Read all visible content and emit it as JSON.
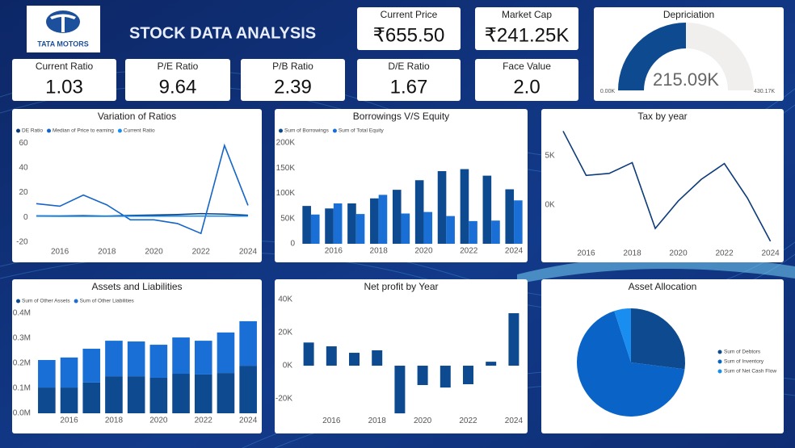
{
  "header": {
    "logo": "TATA MOTORS",
    "title": "STOCK DATA ANALYSIS"
  },
  "cards": [
    {
      "label": "Current Price",
      "value": "₹655.50"
    },
    {
      "label": "Market Cap",
      "value": "₹241.25K"
    },
    {
      "label": "Current Ratio",
      "value": "1.03"
    },
    {
      "label": "P/E Ratio",
      "value": "9.64"
    },
    {
      "label": "P/B Ratio",
      "value": "2.39"
    },
    {
      "label": "D/E Ratio",
      "value": "1.67"
    },
    {
      "label": "Face Value",
      "value": "2.0"
    }
  ],
  "chart_data": [
    {
      "type": "gauge",
      "title": "Depriciation",
      "values": [
        215090
      ],
      "value_labels": [
        "215.09K"
      ],
      "color": "#0d4a8f",
      "track_color": "#f1eeee",
      "ylim": [
        0,
        430170
      ],
      "yticks": [
        {
          "value": 0,
          "label": "0.00K"
        },
        {
          "value": 430170,
          "label": "430.17K"
        }
      ]
    },
    {
      "type": "line",
      "title": "Variation of Ratios",
      "x": [
        2015,
        2016,
        2017,
        2018,
        2019,
        2020,
        2021,
        2022,
        2023,
        2024
      ],
      "xlim": [
        2014.85,
        2024.4
      ],
      "xticks": [
        2016,
        2018,
        2020,
        2022,
        2024
      ],
      "ylim": [
        -22,
        64
      ],
      "yticks": [
        -20,
        0,
        20,
        40,
        60
      ],
      "series": [
        {
          "name": "DE Ratio",
          "color": "#0d3b7a",
          "values": [
            1.2,
            1.1,
            1.3,
            1.0,
            1.5,
            1.8,
            2.2,
            3.0,
            2.6,
            1.67
          ]
        },
        {
          "name": "Median of Price to earning",
          "color": "#1565c8",
          "values": [
            11,
            9,
            18,
            10,
            -2,
            -2,
            -5,
            -13,
            58,
            9.64
          ]
        },
        {
          "name": "Current Ratio",
          "color": "#1a8ef0",
          "values": [
            0.9,
            0.8,
            0.8,
            0.8,
            0.9,
            0.9,
            1.0,
            1.0,
            1.0,
            1.03
          ]
        }
      ]
    },
    {
      "type": "bar",
      "title": "Borrowings V/S Equity",
      "x": [
        2015,
        2016,
        2017,
        2018,
        2019,
        2020,
        2021,
        2022,
        2023,
        2024
      ],
      "xlim": [
        2014.5,
        2024.5
      ],
      "xticks": [
        2016,
        2018,
        2020,
        2022,
        2024
      ],
      "ylim": [
        0,
        210000
      ],
      "yticks": [
        0,
        {
          "value": 50000,
          "label": "50K"
        },
        {
          "value": 100000,
          "label": "100K"
        },
        {
          "value": 150000,
          "label": "150K"
        },
        {
          "value": 200000,
          "label": "200K"
        }
      ],
      "series": [
        {
          "name": "Sum of Borrowings",
          "color": "#0d4a8f",
          "values": [
            75000,
            70000,
            80000,
            90000,
            107000,
            126000,
            144000,
            148000,
            135000,
            108000
          ]
        },
        {
          "name": "Sum of Total Equity",
          "color": "#1a6fd6",
          "values": [
            58000,
            80000,
            59000,
            97000,
            60000,
            63000,
            55000,
            45000,
            46000,
            86000
          ]
        }
      ]
    },
    {
      "type": "line",
      "title": "Tax by year",
      "x": [
        2015,
        2016,
        2017,
        2018,
        2019,
        2020,
        2021,
        2022,
        2023,
        2024
      ],
      "xlim": [
        2014.85,
        2024.4
      ],
      "xticks": [
        2016,
        2018,
        2020,
        2022,
        2024
      ],
      "ylim": [
        -4200,
        7700
      ],
      "yticks": [
        {
          "value": 0,
          "label": "0K"
        },
        {
          "value": 5000,
          "label": "5K"
        }
      ],
      "series": [
        {
          "color": "#0d3b7a",
          "values": [
            7500,
            3000,
            3200,
            4300,
            -2400,
            400,
            2600,
            4200,
            700,
            -3700
          ]
        }
      ]
    },
    {
      "type": "stacked_bar",
      "title": "Assets and Liabilities",
      "x": [
        2015,
        2016,
        2017,
        2018,
        2019,
        2020,
        2021,
        2022,
        2023,
        2024
      ],
      "xlim": [
        2014.5,
        2024.5
      ],
      "xticks": [
        2016,
        2018,
        2020,
        2022,
        2024
      ],
      "ylim": [
        0,
        400000
      ],
      "yticks": [
        {
          "value": 0,
          "label": "0.0M"
        },
        {
          "value": 100000,
          "label": "0.1M"
        },
        {
          "value": 200000,
          "label": "0.2M"
        },
        {
          "value": 300000,
          "label": "0.3M"
        },
        {
          "value": 400000,
          "label": "0.4M"
        }
      ],
      "series": [
        {
          "name": "Sum of Other Assets",
          "color": "#0d4a8f",
          "values": [
            103000,
            103000,
            123000,
            148000,
            148000,
            142000,
            158000,
            155000,
            161000,
            190000
          ]
        },
        {
          "name": "Sum of Other Liabilities",
          "color": "#1a6fd6",
          "values": [
            110000,
            120000,
            135000,
            142000,
            139000,
            132000,
            145000,
            135000,
            162000,
            178000
          ]
        }
      ]
    },
    {
      "type": "bar",
      "title": "Net profit by Year",
      "x": [
        2015,
        2016,
        2017,
        2018,
        2019,
        2020,
        2021,
        2022,
        2023,
        2024
      ],
      "xlim": [
        2014.5,
        2024.5
      ],
      "xticks": [
        2016,
        2018,
        2020,
        2022,
        2024
      ],
      "ylim": [
        -29000,
        42000
      ],
      "yticks": [
        {
          "value": -20000,
          "label": "-20K"
        },
        {
          "value": 0,
          "label": "0K"
        },
        {
          "value": 20000,
          "label": "20K"
        },
        {
          "value": 40000,
          "label": "40K"
        }
      ],
      "series": [
        {
          "color": "#0d4a8f",
          "values": [
            14000,
            11700,
            7800,
            9300,
            -28800,
            -11700,
            -13200,
            -11200,
            2400,
            31700
          ]
        }
      ]
    },
    {
      "type": "pie",
      "title": "Asset Allocation",
      "categories": [
        "Sum of Debtors",
        "Sum of Inventory",
        "Sum of Net Cash Flow"
      ],
      "values": [
        27,
        68,
        5
      ],
      "colors": [
        "#0d4a8f",
        "#0a64c8",
        "#1a8ef0"
      ]
    }
  ]
}
